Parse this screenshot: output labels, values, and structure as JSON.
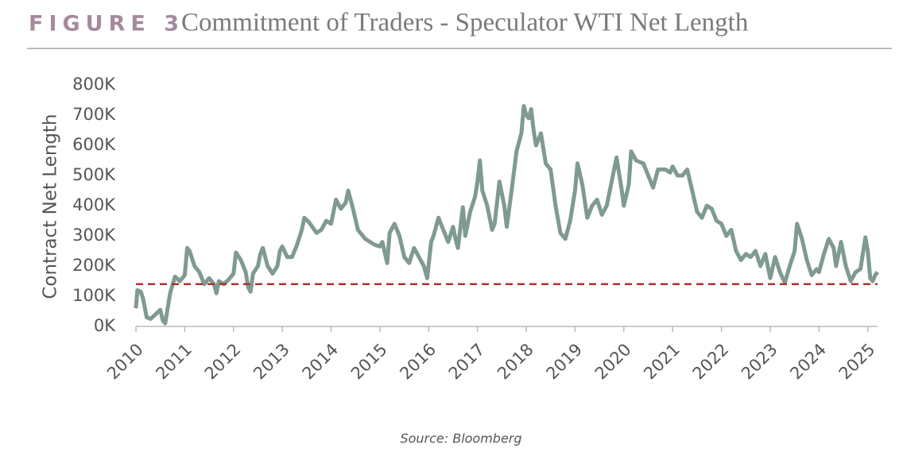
{
  "chart_data": {
    "type": "line",
    "figure_label": "FIGURE 3",
    "title": "Commitment of Traders - Speculator WTI Net Length",
    "ylabel": "Contract Net Length",
    "source": "Source: Bloomberg",
    "xlim": [
      2010,
      2025.2
    ],
    "xticks": [
      2010,
      2011,
      2012,
      2013,
      2014,
      2015,
      2016,
      2017,
      2018,
      2019,
      2020,
      2021,
      2022,
      2023,
      2024,
      2025
    ],
    "ylim": [
      0,
      800000
    ],
    "yticks": [
      {
        "value": 0,
        "label": "0K"
      },
      {
        "value": 100000,
        "label": "100K"
      },
      {
        "value": 200000,
        "label": "200K"
      },
      {
        "value": 300000,
        "label": "300K"
      },
      {
        "value": 400000,
        "label": "400K"
      },
      {
        "value": 500000,
        "label": "500K"
      },
      {
        "value": 600000,
        "label": "600K"
      },
      {
        "value": 700000,
        "label": "700K"
      },
      {
        "value": 800000,
        "label": "800K"
      }
    ],
    "hline": {
      "value": 140000,
      "color": "#b3302c"
    },
    "series": [
      {
        "color": "#7f9a92",
        "x": [
          2010.0,
          2010.03,
          2010.1,
          2010.15,
          2010.22,
          2010.3,
          2010.4,
          2010.5,
          2010.55,
          2010.6,
          2010.65,
          2010.7,
          2010.8,
          2010.9,
          2011.0,
          2011.05,
          2011.1,
          2011.2,
          2011.3,
          2011.4,
          2011.5,
          2011.6,
          2011.65,
          2011.7,
          2011.8,
          2011.9,
          2012.0,
          2012.05,
          2012.15,
          2012.25,
          2012.3,
          2012.35,
          2012.4,
          2012.5,
          2012.55,
          2012.6,
          2012.7,
          2012.8,
          2012.9,
          2012.95,
          2013.0,
          2013.1,
          2013.2,
          2013.3,
          2013.4,
          2013.45,
          2013.55,
          2013.7,
          2013.8,
          2013.9,
          2014.0,
          2014.05,
          2014.1,
          2014.2,
          2014.3,
          2014.35,
          2014.45,
          2014.55,
          2014.7,
          2014.8,
          2014.9,
          2015.0,
          2015.05,
          2015.15,
          2015.2,
          2015.3,
          2015.4,
          2015.5,
          2015.6,
          2015.7,
          2015.8,
          2015.9,
          2015.97,
          2016.05,
          2016.1,
          2016.2,
          2016.3,
          2016.4,
          2016.5,
          2016.55,
          2016.6,
          2016.7,
          2016.75,
          2016.85,
          2016.95,
          2017.0,
          2017.05,
          2017.1,
          2017.2,
          2017.3,
          2017.35,
          2017.45,
          2017.55,
          2017.6,
          2017.7,
          2017.8,
          2017.9,
          2017.95,
          2018.0,
          2018.05,
          2018.1,
          2018.15,
          2018.2,
          2018.3,
          2018.4,
          2018.5,
          2018.6,
          2018.7,
          2018.8,
          2018.9,
          2019.0,
          2019.05,
          2019.15,
          2019.25,
          2019.35,
          2019.45,
          2019.55,
          2019.65,
          2019.75,
          2019.85,
          2019.95,
          2020.0,
          2020.1,
          2020.15,
          2020.25,
          2020.4,
          2020.5,
          2020.6,
          2020.7,
          2020.85,
          2020.95,
          2021.0,
          2021.1,
          2021.2,
          2021.3,
          2021.4,
          2021.5,
          2021.6,
          2021.7,
          2021.8,
          2021.9,
          2022.0,
          2022.1,
          2022.2,
          2022.3,
          2022.4,
          2022.5,
          2022.6,
          2022.7,
          2022.8,
          2022.9,
          2023.0,
          2023.1,
          2023.2,
          2023.3,
          2023.4,
          2023.5,
          2023.55,
          2023.65,
          2023.75,
          2023.85,
          2023.95,
          2024.0,
          2024.1,
          2024.2,
          2024.3,
          2024.35,
          2024.45,
          2024.55,
          2024.65,
          2024.75,
          2024.85,
          2024.95,
          2025.0,
          2025.05,
          2025.1,
          2025.15,
          2025.2
        ],
        "values": [
          60000,
          120000,
          115000,
          90000,
          30000,
          25000,
          40000,
          55000,
          20000,
          10000,
          60000,
          110000,
          165000,
          150000,
          170000,
          260000,
          250000,
          200000,
          180000,
          140000,
          160000,
          140000,
          110000,
          150000,
          140000,
          155000,
          175000,
          245000,
          220000,
          180000,
          130000,
          115000,
          175000,
          200000,
          240000,
          260000,
          200000,
          175000,
          200000,
          250000,
          265000,
          230000,
          230000,
          270000,
          320000,
          360000,
          345000,
          310000,
          320000,
          350000,
          340000,
          380000,
          420000,
          390000,
          410000,
          450000,
          390000,
          320000,
          290000,
          280000,
          270000,
          265000,
          280000,
          210000,
          310000,
          340000,
          300000,
          230000,
          210000,
          260000,
          230000,
          200000,
          160000,
          280000,
          300000,
          360000,
          320000,
          280000,
          330000,
          290000,
          260000,
          395000,
          300000,
          380000,
          430000,
          480000,
          550000,
          450000,
          400000,
          320000,
          340000,
          480000,
          400000,
          330000,
          450000,
          580000,
          640000,
          730000,
          700000,
          690000,
          720000,
          650000,
          600000,
          640000,
          540000,
          520000,
          400000,
          310000,
          290000,
          350000,
          450000,
          540000,
          470000,
          360000,
          400000,
          420000,
          370000,
          400000,
          480000,
          560000,
          460000,
          400000,
          470000,
          580000,
          550000,
          540000,
          500000,
          460000,
          520000,
          520000,
          510000,
          530000,
          500000,
          500000,
          520000,
          450000,
          380000,
          360000,
          400000,
          390000,
          350000,
          340000,
          300000,
          320000,
          250000,
          220000,
          240000,
          230000,
          250000,
          200000,
          240000,
          160000,
          230000,
          180000,
          145000,
          200000,
          250000,
          340000,
          290000,
          220000,
          170000,
          190000,
          180000,
          240000,
          290000,
          260000,
          200000,
          280000,
          200000,
          150000,
          180000,
          190000,
          295000,
          250000,
          160000,
          150000,
          170000,
          180000
        ]
      }
    ]
  }
}
